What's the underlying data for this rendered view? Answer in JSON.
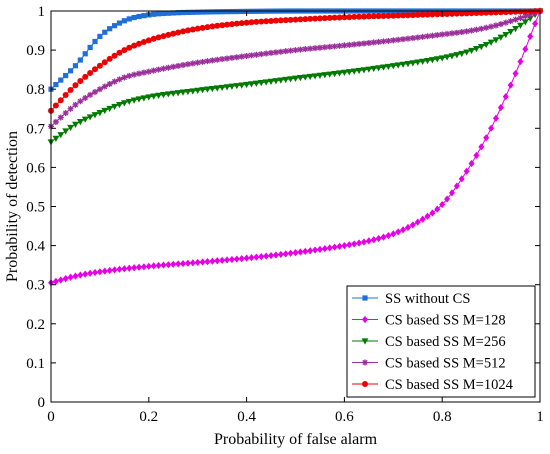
{
  "chart_data": {
    "type": "line",
    "title": "",
    "xlabel": "Probability of false alarm",
    "ylabel": "Probability of detection",
    "xlim": [
      0,
      1
    ],
    "ylim": [
      0,
      1
    ],
    "xticks": [
      0,
      0.2,
      0.4,
      0.6,
      0.8,
      1
    ],
    "xtick_labels": [
      "0",
      "0.2",
      "0.4",
      "0.6",
      "0.8",
      "1"
    ],
    "yticks": [
      0,
      0.1,
      0.2,
      0.3,
      0.4,
      0.5,
      0.6,
      0.7,
      0.8,
      0.9,
      1
    ],
    "ytick_labels": [
      "0",
      "0.1",
      "0.2",
      "0.3",
      "0.4",
      "0.5",
      "0.6",
      "0.7",
      "0.8",
      "0.9",
      "1"
    ],
    "grid": false,
    "legend_position": "bottom-right",
    "series": [
      {
        "name": "SS without CS",
        "color": "#1f6fd6",
        "marker": "square",
        "x": [
          0.0,
          0.05,
          0.1,
          0.15,
          0.2,
          0.25,
          0.3,
          0.4,
          0.5,
          0.6,
          0.7,
          0.8,
          0.9,
          1.0
        ],
        "y": [
          0.8,
          0.86,
          0.935,
          0.975,
          0.99,
          0.995,
          0.997,
          0.999,
          1.0,
          1.0,
          1.0,
          1.0,
          1.0,
          1.0
        ]
      },
      {
        "name": "CS based SS M=128",
        "color": "#e600e6",
        "marker": "diamond",
        "x": [
          0.0,
          0.05,
          0.1,
          0.2,
          0.3,
          0.4,
          0.5,
          0.6,
          0.65,
          0.7,
          0.75,
          0.8,
          0.85,
          0.9,
          0.95,
          1.0
        ],
        "y": [
          0.305,
          0.322,
          0.333,
          0.347,
          0.357,
          0.368,
          0.382,
          0.4,
          0.412,
          0.43,
          0.46,
          0.505,
          0.59,
          0.7,
          0.84,
          1.0
        ]
      },
      {
        "name": "CS based SS M=256",
        "color": "#007a00",
        "marker": "triangle-down",
        "x": [
          0.0,
          0.05,
          0.1,
          0.15,
          0.2,
          0.3,
          0.4,
          0.5,
          0.6,
          0.7,
          0.8,
          0.85,
          0.9,
          0.95,
          1.0
        ],
        "y": [
          0.665,
          0.71,
          0.74,
          0.765,
          0.78,
          0.797,
          0.812,
          0.828,
          0.843,
          0.86,
          0.88,
          0.895,
          0.92,
          0.955,
          1.0
        ]
      },
      {
        "name": "CS based SS M=512",
        "color": "#9b2f9b",
        "marker": "star",
        "x": [
          0.0,
          0.05,
          0.1,
          0.15,
          0.2,
          0.3,
          0.4,
          0.5,
          0.6,
          0.7,
          0.8,
          0.85,
          0.9,
          0.95,
          1.0
        ],
        "y": [
          0.705,
          0.76,
          0.8,
          0.83,
          0.845,
          0.868,
          0.885,
          0.9,
          0.912,
          0.925,
          0.94,
          0.948,
          0.96,
          0.978,
          1.0
        ]
      },
      {
        "name": "CS based SS M=1024",
        "color": "#ee0000",
        "marker": "circle",
        "x": [
          0.0,
          0.05,
          0.1,
          0.15,
          0.2,
          0.25,
          0.3,
          0.4,
          0.5,
          0.6,
          0.7,
          0.8,
          0.9,
          1.0
        ],
        "y": [
          0.745,
          0.81,
          0.86,
          0.9,
          0.925,
          0.942,
          0.955,
          0.97,
          0.978,
          0.984,
          0.988,
          0.992,
          0.996,
          1.0
        ]
      }
    ]
  }
}
